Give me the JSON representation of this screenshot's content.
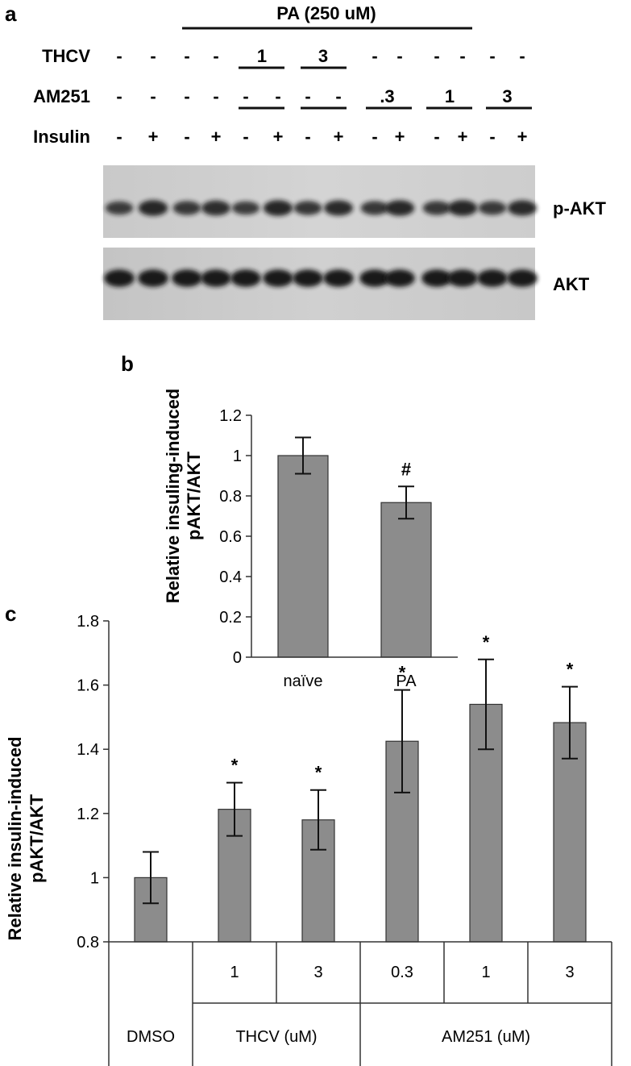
{
  "panel_a": {
    "panel_letter": "a",
    "pa_header": "PA (250 uM)",
    "rows": [
      {
        "label": "THCV",
        "marks": [
          "-",
          "-",
          "-",
          "-",
          "1",
          "",
          "3",
          "",
          "-",
          "-",
          "-",
          "-",
          "-",
          "-"
        ]
      },
      {
        "label": "AM251",
        "marks": [
          "-",
          "-",
          "-",
          "-",
          "-",
          "-",
          "-",
          "-",
          ".3",
          "",
          "1",
          "",
          "3",
          ""
        ]
      },
      {
        "label": "Insulin",
        "marks": [
          "-",
          "+",
          "-",
          "+",
          "-",
          "+",
          "-",
          "+",
          "-",
          "+",
          "-",
          "+",
          "-",
          "+"
        ]
      }
    ],
    "blots": [
      {
        "label": "p-AKT",
        "intensity": [
          0.55,
          0.8,
          0.6,
          0.72,
          0.55,
          0.8,
          0.62,
          0.75,
          0.6,
          0.78,
          0.6,
          0.8,
          0.58,
          0.75
        ]
      },
      {
        "label": "AKT",
        "intensity": [
          0.95,
          0.95,
          0.95,
          0.95,
          0.95,
          0.95,
          0.95,
          0.95,
          0.95,
          0.95,
          0.95,
          0.95,
          0.95,
          0.95
        ]
      }
    ]
  },
  "chart_data": [
    {
      "panel_letter": "b",
      "type": "bar",
      "categories": [
        "naïve",
        "PA"
      ],
      "values": [
        1.0,
        0.767
      ],
      "errors": [
        0.09,
        0.08
      ],
      "annotations": [
        "",
        "#"
      ],
      "ylabel_line1": "Relative insuling-induced",
      "ylabel_line2": "pAKT/AKT",
      "xlabel": "",
      "ylim": [
        0,
        1.2
      ],
      "yticks": [
        "0",
        "0.2",
        "0.4",
        "0.6",
        "0.8",
        "1",
        "1.2"
      ],
      "bar_color": "#8c8c8c",
      "grid": false
    },
    {
      "panel_letter": "c",
      "type": "bar",
      "categories": [
        "DMSO",
        "1",
        "3",
        "0.3",
        "1",
        "3"
      ],
      "values": [
        1.0,
        1.213,
        1.18,
        1.425,
        1.54,
        1.483
      ],
      "errors": [
        0.08,
        0.083,
        0.093,
        0.16,
        0.14,
        0.112
      ],
      "annotations": [
        "",
        "*",
        "*",
        "*",
        "*",
        "*"
      ],
      "ylabel_line1": "Relative insulin-induced",
      "ylabel_line2": "pAKT/AKT",
      "xlabel": "",
      "ylim": [
        0.8,
        1.8
      ],
      "yticks": [
        "0.8",
        "1",
        "1.2",
        "1.4",
        "1.6",
        "1.8"
      ],
      "group_labels": [
        "DMSO",
        "THCV (uM)",
        "AM251 (uM)"
      ],
      "bar_color": "#8c8c8c",
      "grid": false
    }
  ]
}
